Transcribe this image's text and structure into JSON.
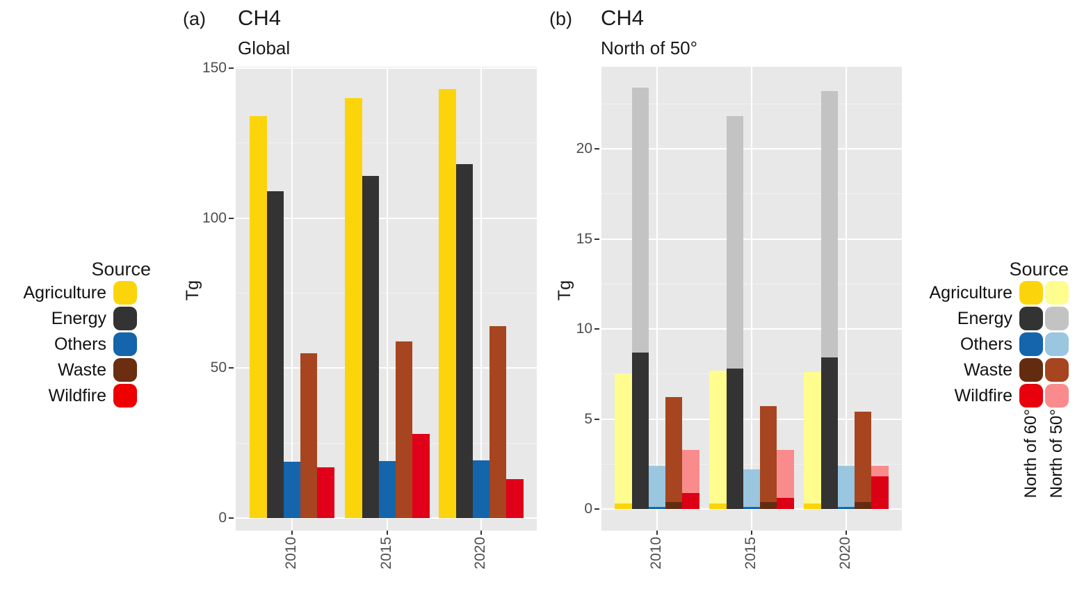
{
  "figure": {
    "panel_a": {
      "tag": "(a)",
      "title": "CH4",
      "subtitle": "Global",
      "y_axis_label": "Tg",
      "y_ticks": [
        "0",
        "50",
        "100",
        "150"
      ],
      "x_ticks": [
        "2010",
        "2015",
        "2020"
      ]
    },
    "panel_b": {
      "tag": "(b)",
      "title": "CH4",
      "subtitle": "North of 50°",
      "y_axis_label": "Tg",
      "y_ticks": [
        "0",
        "5",
        "10",
        "15",
        "20"
      ],
      "x_ticks": [
        "2010",
        "2015",
        "2020"
      ]
    }
  },
  "legend_left": {
    "title": "Source",
    "items": [
      {
        "label": "Agriculture",
        "color": "#FCD40B"
      },
      {
        "label": "Energy",
        "color": "#333333"
      },
      {
        "label": "Others",
        "color": "#1465AC"
      },
      {
        "label": "Waste",
        "color": "#6B2E11"
      },
      {
        "label": "Wildfire",
        "color": "#EE0000"
      }
    ]
  },
  "legend_right": {
    "title": "Source",
    "items": [
      {
        "label": "Agriculture",
        "dark": "#FCD40B",
        "light": "#FEFD8E"
      },
      {
        "label": "Energy",
        "dark": "#333333",
        "light": "#C3C3C3"
      },
      {
        "label": "Others",
        "dark": "#1465AC",
        "light": "#9AC6E0"
      },
      {
        "label": "Waste",
        "dark": "#632C11",
        "light": "#A6451F"
      },
      {
        "label": "Wildfire",
        "dark": "#E8000D",
        "light": "#F98B8C"
      }
    ],
    "group_labels": [
      "North of 60°",
      "North of 50°"
    ]
  },
  "colors": {
    "panel_background": "#e8e8e8",
    "gridline_major": "#ffffff",
    "tick_text": "#4d4d4d",
    "agriculture_dark": "#FCD40B",
    "agriculture_light": "#FEFD8E",
    "energy_dark": "#333333",
    "energy_light": "#C3C3C3",
    "others_dark": "#1465AC",
    "others_light": "#9AC6E0",
    "waste_dark": "#632C11",
    "waste_light": "#A6451F",
    "wildfire_dark": "#E8000D",
    "wildfire_light": "#F98B8C"
  },
  "chart_data": [
    {
      "type": "bar",
      "panel_tag": "(a)",
      "title": "CH4",
      "subtitle": "Global",
      "ylabel": "Tg",
      "ylim": [
        0,
        150
      ],
      "yticks": [
        0,
        50,
        100,
        150
      ],
      "grid": true,
      "legend_title": "Source",
      "legend_position": "left",
      "categories": [
        "2010",
        "2015",
        "2020"
      ],
      "series": [
        {
          "name": "Agriculture",
          "color": "#FCD40B",
          "values": [
            134,
            140,
            143
          ]
        },
        {
          "name": "Energy",
          "color": "#333333",
          "values": [
            109,
            114,
            118
          ]
        },
        {
          "name": "Others",
          "color": "#1465AC",
          "values": [
            18.7,
            18.9,
            19.2
          ]
        },
        {
          "name": "Waste",
          "color": "#A6451F",
          "values": [
            55,
            59,
            64
          ]
        },
        {
          "name": "Wildfire",
          "color": "#E0001A",
          "values": [
            17,
            28,
            13
          ]
        }
      ]
    },
    {
      "type": "bar-overlay",
      "panel_tag": "(b)",
      "title": "CH4",
      "subtitle": "North of 50°",
      "ylabel": "Tg",
      "ylim": [
        0,
        23.4
      ],
      "yticks": [
        0,
        5,
        10,
        15,
        20
      ],
      "grid": true,
      "legend_title": "Source",
      "legend_position": "right",
      "legend_groups": [
        "North of 60°",
        "North of 50°"
      ],
      "categories": [
        "2010",
        "2015",
        "2020"
      ],
      "series": [
        {
          "name": "Agriculture",
          "group": "North of 50°",
          "color": "#FEFD8E",
          "values": [
            7.5,
            7.7,
            7.6
          ]
        },
        {
          "name": "Agriculture",
          "group": "North of 60°",
          "color": "#FCD40B",
          "values": [
            0.3,
            0.3,
            0.3
          ]
        },
        {
          "name": "Energy",
          "group": "North of 50°",
          "color": "#C3C3C3",
          "values": [
            23.4,
            21.8,
            23.2
          ]
        },
        {
          "name": "Energy",
          "group": "North of 60°",
          "color": "#333333",
          "values": [
            8.7,
            7.8,
            8.4
          ]
        },
        {
          "name": "Others",
          "group": "North of 50°",
          "color": "#9AC6E0",
          "values": [
            2.4,
            2.2,
            2.4
          ]
        },
        {
          "name": "Others",
          "group": "North of 60°",
          "color": "#1465AC",
          "values": [
            0.1,
            0.1,
            0.1
          ]
        },
        {
          "name": "Waste",
          "group": "North of 50°",
          "color": "#A6451F",
          "values": [
            6.2,
            5.7,
            5.4
          ]
        },
        {
          "name": "Waste",
          "group": "North of 60°",
          "color": "#632C11",
          "values": [
            0.4,
            0.4,
            0.4
          ]
        },
        {
          "name": "Wildfire",
          "group": "North of 50°",
          "color": "#F98B8C",
          "values": [
            3.3,
            3.3,
            2.4
          ]
        },
        {
          "name": "Wildfire",
          "group": "North of 60°",
          "color": "#DC0015",
          "values": [
            0.9,
            0.6,
            1.8
          ]
        }
      ]
    }
  ]
}
